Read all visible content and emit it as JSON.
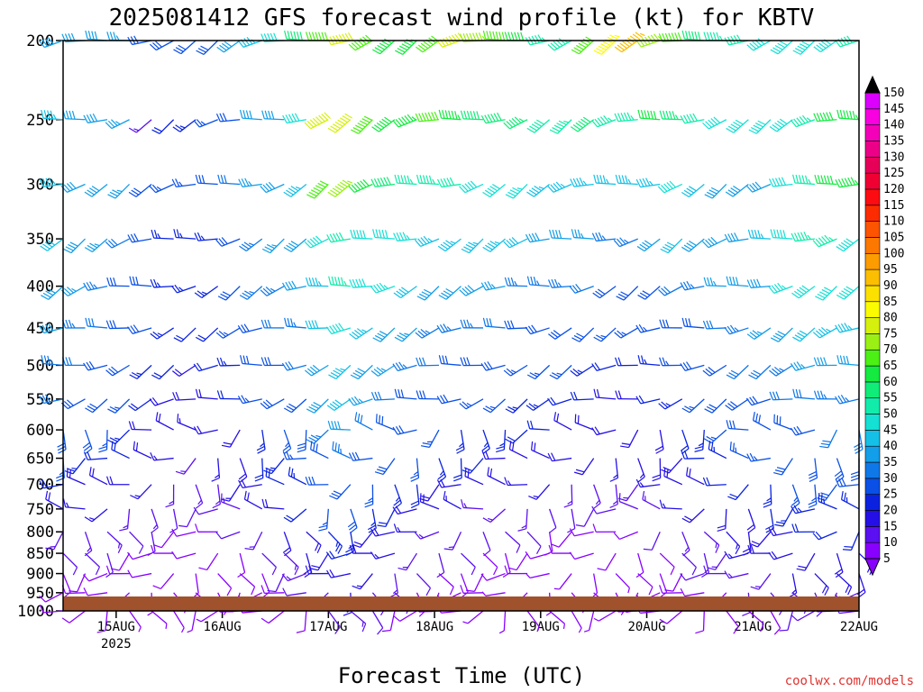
{
  "chart_data": {
    "type": "wind_barb_profile",
    "title": "2025081412 GFS forecast wind profile (kt) for KBTV",
    "xlabel": "Forecast Time (UTC)",
    "ylabel": "",
    "credit": "coolwx.com/models",
    "y_ticks": [
      200,
      250,
      300,
      350,
      400,
      450,
      500,
      550,
      600,
      650,
      700,
      750,
      800,
      850,
      900,
      950,
      1000
    ],
    "y_range": [
      1000,
      200
    ],
    "x_ticks": [
      {
        "label": "15AUG",
        "sublabel": "2025",
        "hour": 12
      },
      {
        "label": "16AUG",
        "sublabel": "",
        "hour": 36
      },
      {
        "label": "17AUG",
        "sublabel": "",
        "hour": 60
      },
      {
        "label": "18AUG",
        "sublabel": "",
        "hour": 84
      },
      {
        "label": "19AUG",
        "sublabel": "",
        "hour": 108
      },
      {
        "label": "20AUG",
        "sublabel": "",
        "hour": 132
      },
      {
        "label": "21AUG",
        "sublabel": "",
        "hour": 156
      },
      {
        "label": "22AUG",
        "sublabel": "",
        "hour": 180
      }
    ],
    "x_range_hours": [
      0,
      180
    ],
    "time_step_hours": 5,
    "colorbar": {
      "levels": [
        5,
        10,
        15,
        20,
        25,
        30,
        35,
        40,
        45,
        50,
        55,
        60,
        65,
        70,
        75,
        80,
        85,
        90,
        95,
        100,
        105,
        110,
        115,
        120,
        125,
        130,
        135,
        140,
        145,
        150
      ],
      "colors": [
        "#8800ff",
        "#5a10f0",
        "#2410e6",
        "#0a22e0",
        "#0a50e6",
        "#0f78e8",
        "#129ee8",
        "#14c0e6",
        "#14e0d4",
        "#12ecaa",
        "#10ec78",
        "#14ea40",
        "#4cf014",
        "#9af014",
        "#d6f00e",
        "#fcfc00",
        "#fce000",
        "#fcbe00",
        "#fc9c00",
        "#fc7800",
        "#fc5400",
        "#fc2c00",
        "#fc0c10",
        "#f00032",
        "#e60058",
        "#ec0088",
        "#f400b8",
        "#f800e0",
        "#dc00ff",
        "#000000"
      ]
    },
    "speed_profiles_kt": [
      {
        "level": 200,
        "speeds": [
          38,
          40,
          38,
          36,
          30,
          28,
          28,
          30,
          40,
          45,
          50,
          60,
          70,
          80,
          70,
          62,
          65,
          68,
          80,
          75,
          68,
          62,
          55,
          55,
          70,
          85,
          95,
          75,
          68,
          60,
          55,
          52,
          50,
          50,
          50,
          50,
          52
        ]
      },
      {
        "level": 250,
        "speeds": [
          45,
          40,
          38,
          36,
          15,
          22,
          25,
          26,
          28,
          40,
          38,
          50,
          78,
          80,
          70,
          62,
          65,
          68,
          64,
          60,
          58,
          56,
          52,
          55,
          60,
          55,
          55,
          62,
          56,
          52,
          50,
          48,
          48,
          50,
          55,
          62,
          65
        ]
      },
      {
        "level": 300,
        "speeds": [
          45,
          40,
          40,
          36,
          28,
          26,
          26,
          28,
          32,
          36,
          40,
          45,
          70,
          75,
          62,
          58,
          55,
          55,
          52,
          50,
          48,
          46,
          45,
          45,
          44,
          44,
          45,
          45,
          48,
          42,
          40,
          40,
          40,
          50,
          55,
          62,
          65
        ]
      },
      {
        "level": 350,
        "speeds": [
          42,
          38,
          36,
          32,
          28,
          25,
          24,
          25,
          30,
          34,
          36,
          40,
          48,
          52,
          50,
          48,
          46,
          45,
          44,
          44,
          45,
          42,
          40,
          38,
          36,
          34,
          35,
          38,
          42,
          40,
          40,
          40,
          45,
          50,
          55,
          55,
          50
        ]
      },
      {
        "level": 400,
        "speeds": [
          40,
          36,
          35,
          30,
          28,
          25,
          24,
          25,
          30,
          34,
          34,
          38,
          45,
          55,
          50,
          46,
          42,
          40,
          38,
          38,
          36,
          34,
          34,
          34,
          32,
          30,
          30,
          30,
          32,
          34,
          36,
          38,
          40,
          46,
          50,
          50,
          48
        ]
      },
      {
        "level": 450,
        "speeds": [
          38,
          34,
          32,
          30,
          28,
          24,
          22,
          22,
          26,
          30,
          32,
          34,
          42,
          48,
          44,
          40,
          36,
          35,
          34,
          34,
          32,
          30,
          30,
          30,
          28,
          26,
          26,
          26,
          28,
          30,
          32,
          34,
          36,
          40,
          42,
          44,
          45
        ]
      },
      {
        "level": 500,
        "speeds": [
          35,
          32,
          30,
          28,
          25,
          22,
          20,
          22,
          25,
          28,
          30,
          32,
          40,
          44,
          40,
          36,
          34,
          32,
          30,
          30,
          28,
          26,
          26,
          26,
          24,
          22,
          22,
          24,
          26,
          28,
          30,
          32,
          32,
          34,
          36,
          38,
          40
        ]
      },
      {
        "level": 550,
        "speeds": [
          32,
          30,
          28,
          26,
          22,
          20,
          18,
          20,
          22,
          26,
          28,
          30,
          38,
          42,
          36,
          32,
          30,
          28,
          28,
          26,
          26,
          24,
          24,
          22,
          22,
          20,
          20,
          22,
          24,
          26,
          28,
          30,
          30,
          32,
          32,
          34,
          35
        ]
      },
      {
        "level": 600,
        "speeds": [
          30,
          28,
          26,
          24,
          20,
          18,
          16,
          18,
          20,
          24,
          26,
          28,
          35,
          38,
          32,
          30,
          28,
          26,
          25,
          24,
          24,
          22,
          22,
          20,
          20,
          18,
          18,
          20,
          22,
          24,
          26,
          28,
          28,
          30,
          30,
          32,
          32
        ]
      },
      {
        "level": 650,
        "speeds": [
          26,
          24,
          22,
          22,
          18,
          16,
          15,
          16,
          18,
          22,
          24,
          26,
          30,
          34,
          30,
          28,
          26,
          24,
          22,
          22,
          20,
          20,
          20,
          18,
          18,
          16,
          16,
          18,
          20,
          22,
          24,
          26,
          26,
          28,
          28,
          30,
          30
        ]
      },
      {
        "level": 700,
        "speeds": [
          22,
          20,
          20,
          18,
          16,
          14,
          13,
          14,
          16,
          20,
          22,
          24,
          28,
          30,
          26,
          24,
          22,
          20,
          20,
          18,
          18,
          16,
          16,
          15,
          15,
          14,
          14,
          16,
          18,
          20,
          22,
          22,
          24,
          26,
          26,
          28,
          28
        ]
      },
      {
        "level": 750,
        "speeds": [
          18,
          16,
          16,
          15,
          14,
          12,
          12,
          12,
          14,
          18,
          20,
          22,
          26,
          28,
          24,
          22,
          20,
          18,
          16,
          15,
          14,
          13,
          12,
          12,
          12,
          12,
          12,
          14,
          16,
          18,
          18,
          20,
          22,
          24,
          24,
          25,
          25
        ]
      },
      {
        "level": 800,
        "speeds": [
          15,
          14,
          14,
          12,
          12,
          10,
          10,
          10,
          12,
          15,
          18,
          20,
          24,
          25,
          20,
          18,
          16,
          15,
          14,
          12,
          12,
          11,
          10,
          10,
          10,
          10,
          10,
          12,
          14,
          15,
          16,
          18,
          20,
          20,
          22,
          22,
          22
        ]
      },
      {
        "level": 850,
        "speeds": [
          12,
          12,
          12,
          10,
          10,
          9,
          8,
          9,
          10,
          12,
          15,
          18,
          20,
          22,
          18,
          16,
          14,
          12,
          12,
          10,
          10,
          9,
          9,
          8,
          8,
          8,
          9,
          10,
          12,
          14,
          15,
          16,
          18,
          18,
          20,
          20,
          20
        ]
      },
      {
        "level": 900,
        "speeds": [
          10,
          10,
          10,
          9,
          8,
          8,
          7,
          8,
          9,
          10,
          12,
          15,
          18,
          20,
          16,
          14,
          12,
          10,
          10,
          9,
          8,
          8,
          7,
          7,
          7,
          7,
          8,
          9,
          10,
          12,
          12,
          14,
          15,
          16,
          18,
          18,
          18
        ]
      },
      {
        "level": 950,
        "speeds": [
          9,
          9,
          9,
          8,
          7,
          7,
          6,
          7,
          8,
          9,
          10,
          12,
          15,
          16,
          14,
          12,
          10,
          9,
          8,
          8,
          7,
          7,
          6,
          6,
          6,
          6,
          7,
          8,
          9,
          10,
          10,
          12,
          12,
          14,
          15,
          15,
          15
        ]
      },
      {
        "level": 1000,
        "speeds": [
          8,
          8,
          8,
          7,
          6,
          6,
          5,
          6,
          7,
          8,
          9,
          10,
          12,
          14,
          12,
          10,
          9,
          8,
          7,
          7,
          6,
          6,
          5,
          5,
          5,
          5,
          6,
          7,
          8,
          9,
          9,
          10,
          10,
          12,
          12,
          12,
          12
        ]
      }
    ],
    "ground_terrain_color": "#a0522d"
  }
}
